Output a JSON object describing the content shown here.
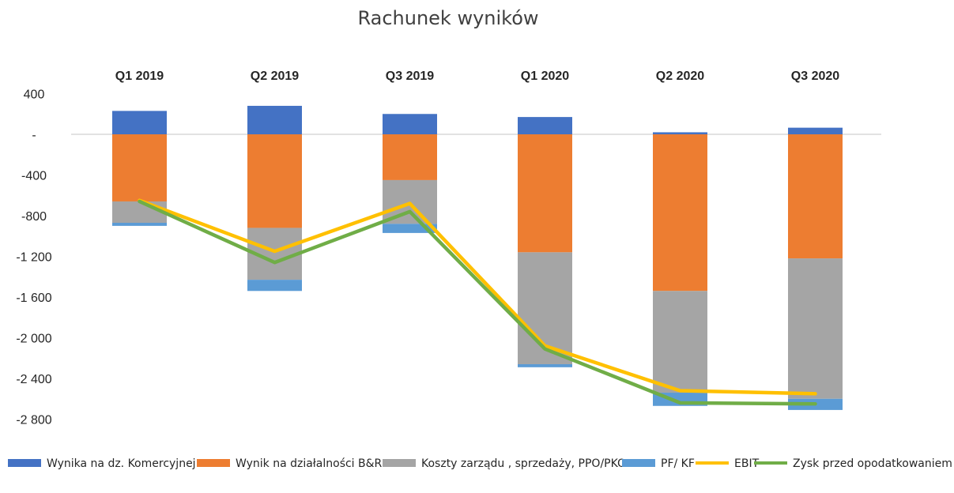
{
  "chart_data": {
    "type": "bar",
    "stacked": true,
    "title": "Rachunek wyników",
    "categories": [
      "Q1 2019",
      "Q2 2019",
      "Q3 2019",
      "Q1 2020",
      "Q2 2020",
      "Q3 2020"
    ],
    "yticks": [
      400,
      0,
      -400,
      -800,
      -1200,
      -1600,
      -2000,
      -2400,
      -2800
    ],
    "ytick_labels": [
      "400",
      "-",
      "-400",
      "-800",
      "-1 200",
      "-1 600",
      "-2 000",
      "-2 400",
      "-2 800"
    ],
    "ylim": [
      -2800,
      400
    ],
    "legend_position": "bottom",
    "series": [
      {
        "name": "Wynika na dz. Komercyjnej",
        "kind": "bar",
        "color": "#4472C4",
        "values": [
          230,
          280,
          200,
          170,
          20,
          65
        ]
      },
      {
        "name": "Wynik na działalności B&R",
        "kind": "bar",
        "color": "#ED7D31",
        "values": [
          -660,
          -920,
          -450,
          -1160,
          -1540,
          -1220
        ]
      },
      {
        "name": "Koszty zarządu , sprzedaży, PPO/PKO",
        "kind": "bar",
        "color": "#A5A5A5",
        "values": [
          -210,
          -510,
          -430,
          -1100,
          -1000,
          -1380
        ]
      },
      {
        "name": "PF/ KF",
        "kind": "bar",
        "color": "#5B9BD5",
        "values": [
          -30,
          -110,
          -90,
          -30,
          -130,
          -110
        ]
      },
      {
        "name": "EBIT",
        "kind": "line",
        "color": "#FFC000",
        "values": [
          -650,
          -1150,
          -680,
          -2080,
          -2520,
          -2550
        ]
      },
      {
        "name": "Zysk przed opodatkowaniem",
        "kind": "line",
        "color": "#70AD47",
        "values": [
          -660,
          -1260,
          -760,
          -2110,
          -2640,
          -2650
        ]
      }
    ]
  }
}
